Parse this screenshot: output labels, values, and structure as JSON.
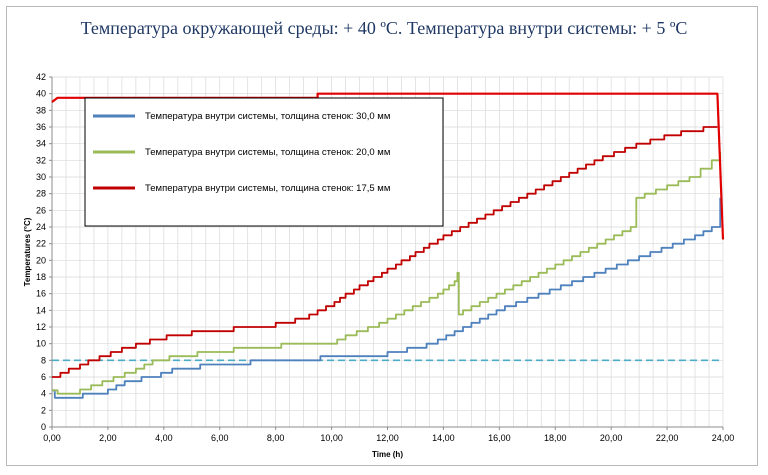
{
  "chart_data": {
    "type": "line",
    "title": "Температура окружающей среды: + 40 ºС.  Температура внутри системы: + 5 ºС",
    "xlabel": "Time (h)",
    "ylabel": "Temperatures (°C)",
    "xlim": [
      0,
      24
    ],
    "ylim": [
      0,
      42
    ],
    "x_ticks": [
      "0,00",
      "2,00",
      "4,00",
      "6,00",
      "8,00",
      "10,00",
      "12,00",
      "14,00",
      "16,00",
      "18,00",
      "20,00",
      "22,00",
      "24,00"
    ],
    "y_ticks": [
      "0",
      "2",
      "4",
      "6",
      "8",
      "10",
      "12",
      "14",
      "16",
      "18",
      "20",
      "22",
      "24",
      "26",
      "28",
      "30",
      "32",
      "34",
      "36",
      "38",
      "40",
      "42"
    ],
    "grid": true,
    "legend_position": "top-left",
    "reference_line": {
      "y": 8,
      "style": "dashed",
      "color": "#4bacc6"
    },
    "series": [
      {
        "name": "Температура внутри системы, толщина стенок: 30,0 мм",
        "color": "#4f81bd",
        "points": [
          [
            0,
            4.4
          ],
          [
            0.1,
            3.5
          ],
          [
            1.1,
            3.5
          ],
          [
            1.1,
            4.0
          ],
          [
            2.0,
            4.0
          ],
          [
            2.0,
            4.5
          ],
          [
            2.3,
            4.5
          ],
          [
            2.3,
            5.0
          ],
          [
            2.6,
            5.0
          ],
          [
            2.6,
            5.5
          ],
          [
            3.2,
            5.5
          ],
          [
            3.2,
            6.0
          ],
          [
            3.9,
            6.0
          ],
          [
            3.9,
            6.5
          ],
          [
            4.3,
            6.5
          ],
          [
            4.3,
            7.0
          ],
          [
            5.3,
            7.0
          ],
          [
            5.3,
            7.5
          ],
          [
            7.1,
            7.5
          ],
          [
            7.1,
            8.0
          ],
          [
            9.6,
            8.0
          ],
          [
            9.6,
            8.5
          ],
          [
            12.0,
            8.5
          ],
          [
            12.0,
            9.0
          ],
          [
            12.7,
            9.0
          ],
          [
            12.7,
            9.5
          ],
          [
            13.1,
            9.5
          ],
          [
            13.4,
            10.0
          ],
          [
            13.8,
            10.5
          ],
          [
            14.1,
            11.0
          ],
          [
            14.4,
            11.5
          ],
          [
            14.7,
            12.0
          ],
          [
            15.0,
            12.5
          ],
          [
            15.3,
            13.0
          ],
          [
            15.6,
            13.5
          ],
          [
            15.9,
            14.0
          ],
          [
            16.2,
            14.5
          ],
          [
            16.6,
            15.0
          ],
          [
            17.0,
            15.5
          ],
          [
            17.4,
            16.0
          ],
          [
            17.8,
            16.5
          ],
          [
            18.2,
            17.0
          ],
          [
            18.6,
            17.5
          ],
          [
            19.0,
            18.0
          ],
          [
            19.4,
            18.5
          ],
          [
            19.8,
            19.0
          ],
          [
            20.2,
            19.5
          ],
          [
            20.6,
            20.0
          ],
          [
            21.0,
            20.5
          ],
          [
            21.4,
            21.0
          ],
          [
            21.8,
            21.5
          ],
          [
            22.2,
            22.0
          ],
          [
            22.6,
            22.5
          ],
          [
            23.0,
            23.0
          ],
          [
            23.3,
            23.5
          ],
          [
            23.6,
            24.0
          ],
          [
            23.9,
            27.5
          ]
        ]
      },
      {
        "name": "Температура внутри системы, толщина стенок: 20,0 мм",
        "color": "#9bbb59",
        "points": [
          [
            0,
            4.4
          ],
          [
            0.2,
            4.0
          ],
          [
            1.0,
            4.0
          ],
          [
            1.0,
            4.5
          ],
          [
            1.4,
            5.0
          ],
          [
            1.8,
            5.5
          ],
          [
            2.2,
            6.0
          ],
          [
            2.6,
            6.5
          ],
          [
            3.0,
            7.0
          ],
          [
            3.3,
            7.5
          ],
          [
            3.6,
            8.0
          ],
          [
            4.0,
            8.0
          ],
          [
            4.2,
            8.5
          ],
          [
            5.0,
            8.5
          ],
          [
            5.2,
            9.0
          ],
          [
            6.3,
            9.0
          ],
          [
            6.5,
            9.5
          ],
          [
            8.0,
            9.5
          ],
          [
            8.2,
            10.0
          ],
          [
            10.0,
            10.0
          ],
          [
            10.2,
            10.5
          ],
          [
            10.5,
            11.0
          ],
          [
            10.9,
            11.5
          ],
          [
            11.3,
            12.0
          ],
          [
            11.7,
            12.5
          ],
          [
            12.0,
            13.0
          ],
          [
            12.3,
            13.5
          ],
          [
            12.6,
            14.0
          ],
          [
            12.9,
            14.5
          ],
          [
            13.2,
            15.0
          ],
          [
            13.5,
            15.5
          ],
          [
            13.8,
            16.0
          ],
          [
            14.0,
            16.5
          ],
          [
            14.2,
            17.0
          ],
          [
            14.4,
            17.5
          ],
          [
            14.5,
            18.5
          ],
          [
            14.55,
            13.5
          ],
          [
            14.7,
            14.0
          ],
          [
            15.0,
            14.5
          ],
          [
            15.3,
            15.0
          ],
          [
            15.6,
            15.5
          ],
          [
            15.9,
            16.0
          ],
          [
            16.2,
            16.5
          ],
          [
            16.5,
            17.0
          ],
          [
            16.8,
            17.5
          ],
          [
            17.1,
            18.0
          ],
          [
            17.4,
            18.5
          ],
          [
            17.7,
            19.0
          ],
          [
            18.0,
            19.5
          ],
          [
            18.3,
            20.0
          ],
          [
            18.6,
            20.5
          ],
          [
            18.9,
            21.0
          ],
          [
            19.2,
            21.5
          ],
          [
            19.5,
            22.0
          ],
          [
            19.8,
            22.5
          ],
          [
            20.1,
            23.0
          ],
          [
            20.4,
            23.5
          ],
          [
            20.7,
            24.0
          ],
          [
            20.9,
            27.5
          ],
          [
            21.2,
            28.0
          ],
          [
            21.6,
            28.5
          ],
          [
            22.0,
            29.0
          ],
          [
            22.4,
            29.5
          ],
          [
            22.8,
            30.0
          ],
          [
            23.2,
            31.0
          ],
          [
            23.6,
            32.0
          ],
          [
            23.9,
            33.0
          ]
        ]
      },
      {
        "name": "Температура внутри системы, толщина стенок: 17,5 мм",
        "color": "#c00000",
        "points": [
          [
            0,
            6.0
          ],
          [
            0.3,
            6.5
          ],
          [
            0.6,
            7.0
          ],
          [
            1.0,
            7.5
          ],
          [
            1.3,
            8.0
          ],
          [
            1.7,
            8.5
          ],
          [
            2.1,
            9.0
          ],
          [
            2.5,
            9.5
          ],
          [
            3.0,
            10.0
          ],
          [
            3.5,
            10.5
          ],
          [
            4.1,
            11.0
          ],
          [
            5.0,
            11.5
          ],
          [
            6.5,
            12.0
          ],
          [
            8.0,
            12.5
          ],
          [
            8.7,
            13.0
          ],
          [
            9.2,
            13.5
          ],
          [
            9.5,
            14.0
          ],
          [
            9.8,
            14.5
          ],
          [
            10.1,
            15.0
          ],
          [
            10.3,
            15.5
          ],
          [
            10.5,
            16.0
          ],
          [
            10.8,
            16.5
          ],
          [
            11.0,
            17.0
          ],
          [
            11.3,
            17.5
          ],
          [
            11.5,
            18.0
          ],
          [
            11.8,
            18.5
          ],
          [
            12.0,
            19.0
          ],
          [
            12.3,
            19.5
          ],
          [
            12.5,
            20.0
          ],
          [
            12.8,
            20.5
          ],
          [
            13.0,
            21.0
          ],
          [
            13.3,
            21.5
          ],
          [
            13.5,
            22.0
          ],
          [
            13.8,
            22.5
          ],
          [
            14.0,
            23.0
          ],
          [
            14.3,
            23.5
          ],
          [
            14.6,
            24.0
          ],
          [
            14.9,
            24.5
          ],
          [
            15.2,
            25.0
          ],
          [
            15.5,
            25.5
          ],
          [
            15.8,
            26.0
          ],
          [
            16.1,
            26.5
          ],
          [
            16.4,
            27.0
          ],
          [
            16.7,
            27.5
          ],
          [
            17.0,
            28.0
          ],
          [
            17.3,
            28.5
          ],
          [
            17.6,
            29.0
          ],
          [
            17.9,
            29.5
          ],
          [
            18.2,
            30.0
          ],
          [
            18.5,
            30.5
          ],
          [
            18.8,
            31.0
          ],
          [
            19.1,
            31.5
          ],
          [
            19.4,
            32.0
          ],
          [
            19.7,
            32.5
          ],
          [
            20.1,
            33.0
          ],
          [
            20.5,
            33.5
          ],
          [
            20.9,
            34.0
          ],
          [
            21.4,
            34.5
          ],
          [
            21.9,
            35.0
          ],
          [
            22.5,
            35.5
          ],
          [
            23.3,
            36.0
          ],
          [
            23.8,
            36.0
          ]
        ]
      }
    ],
    "ambient_line": {
      "color": "#e00000",
      "points": [
        [
          0,
          39.0
        ],
        [
          0.2,
          39.5
        ],
        [
          9.5,
          39.5
        ],
        [
          9.5,
          40.0
        ],
        [
          23.8,
          40.0
        ],
        [
          24.0,
          22.5
        ]
      ]
    }
  }
}
